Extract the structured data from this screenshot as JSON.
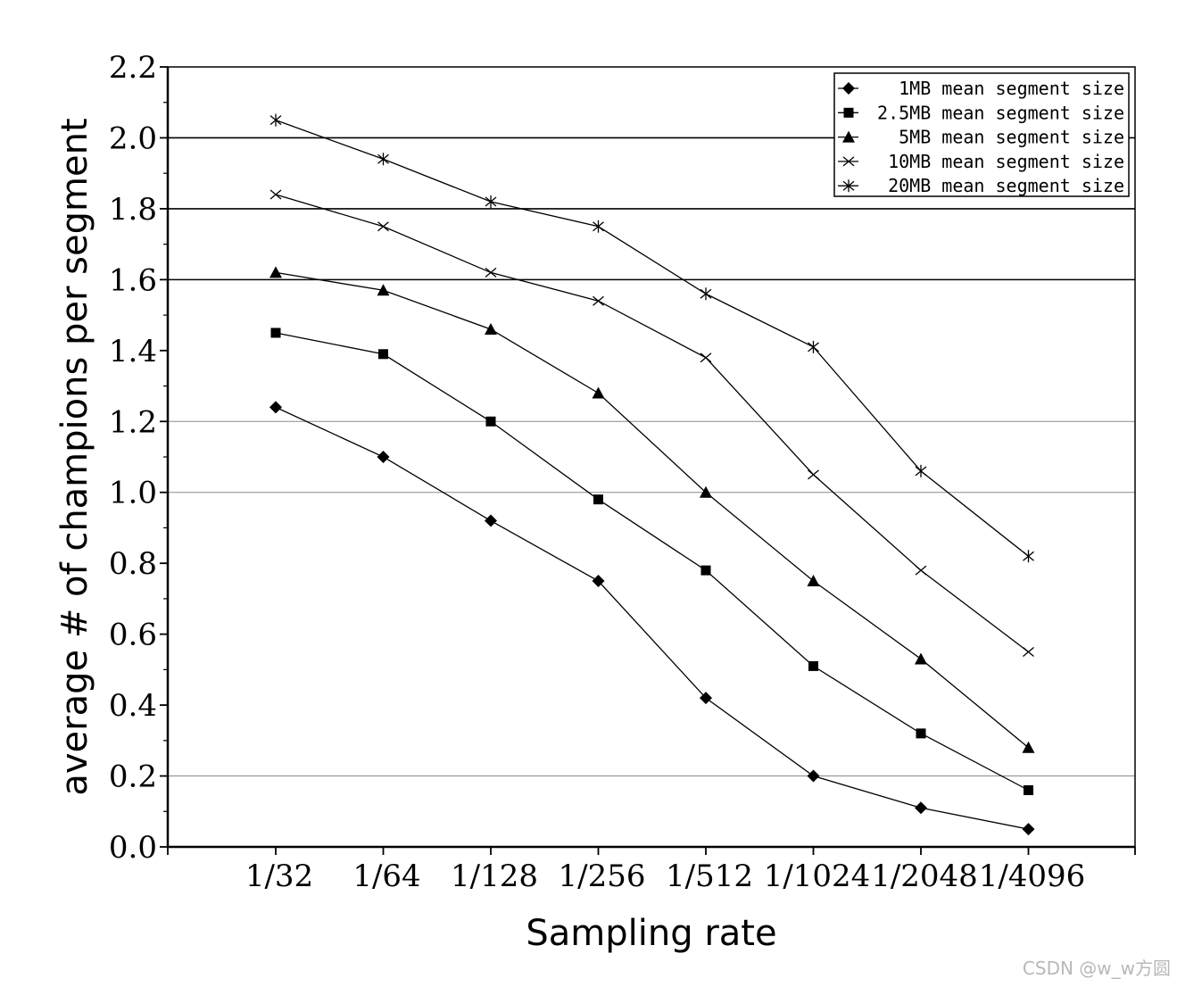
{
  "chart_data": {
    "type": "line",
    "title": "",
    "xlabel": "Sampling rate",
    "ylabel": "average # of champions per segment",
    "categories": [
      "1/32",
      "1/64",
      "1/128",
      "1/256",
      "1/512",
      "1/1024",
      "1/2048",
      "1/4096"
    ],
    "ylim": [
      0,
      2.2
    ],
    "yticks": [
      "0.0",
      "0.2",
      "0.4",
      "0.6",
      "0.8",
      "1.0",
      "1.2",
      "1.4",
      "1.6",
      "1.8",
      "2.0",
      "2.2"
    ],
    "gridlines_y": [
      0.2,
      1.0,
      1.2,
      1.6,
      1.8,
      2.0
    ],
    "legend_position": "top-right",
    "series": [
      {
        "name": "1MB mean segment size",
        "marker": "diamond",
        "values": [
          1.24,
          1.1,
          0.92,
          0.75,
          0.42,
          0.2,
          0.11,
          0.05
        ]
      },
      {
        "name": "2.5MB mean segment size",
        "marker": "square",
        "values": [
          1.45,
          1.39,
          1.2,
          0.98,
          0.78,
          0.51,
          0.32,
          0.16
        ]
      },
      {
        "name": "5MB mean segment size",
        "marker": "triangle",
        "values": [
          1.62,
          1.57,
          1.46,
          1.28,
          1.0,
          0.75,
          0.53,
          0.28
        ]
      },
      {
        "name": "10MB mean segment size",
        "marker": "x",
        "values": [
          1.84,
          1.75,
          1.62,
          1.54,
          1.38,
          1.05,
          0.78,
          0.55
        ]
      },
      {
        "name": "20MB mean segment size",
        "marker": "star",
        "values": [
          2.05,
          1.94,
          1.82,
          1.75,
          1.56,
          1.41,
          1.06,
          0.82
        ]
      }
    ]
  },
  "watermark": "CSDN @w_w方圆"
}
